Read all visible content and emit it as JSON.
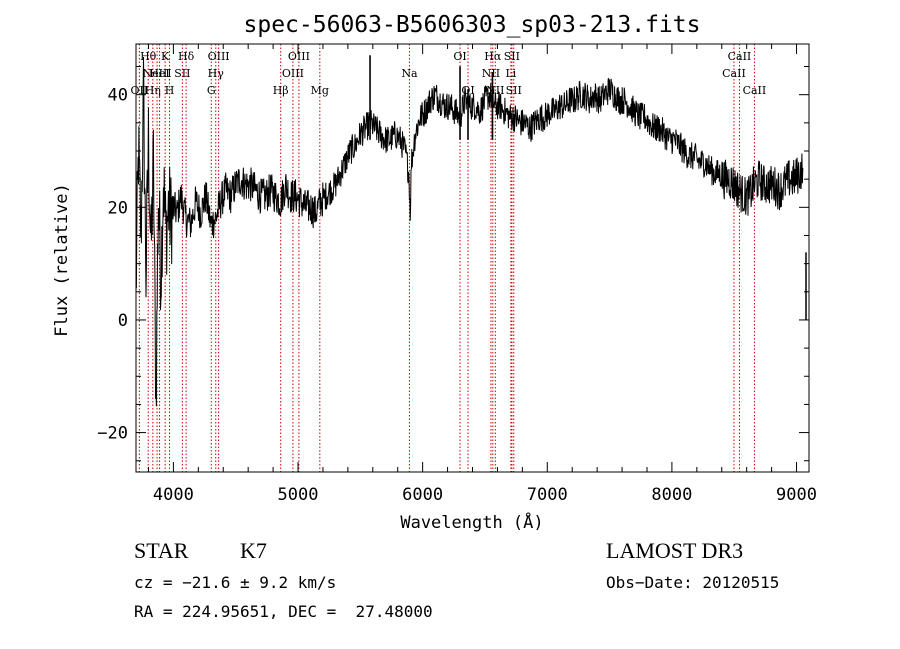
{
  "chart_data": {
    "type": "line",
    "title": "spec-56063-B5606303_sp03-213.fits",
    "xlabel": "Wavelength (Å)",
    "ylabel": "Flux (relative)",
    "xlim": [
      3700,
      9100
    ],
    "ylim": [
      -27,
      49
    ],
    "xticks": [
      4000,
      5000,
      6000,
      7000,
      8000,
      9000
    ],
    "yticks": [
      -20,
      0,
      20,
      40
    ],
    "series": [
      {
        "name": "flux",
        "x": [
          3700,
          3720,
          3740,
          3760,
          3780,
          3800,
          3820,
          3840,
          3860,
          3880,
          3900,
          3920,
          3940,
          3960,
          3980,
          4000,
          4030,
          4060,
          4100,
          4140,
          4180,
          4220,
          4260,
          4300,
          4340,
          4380,
          4420,
          4460,
          4500,
          4540,
          4580,
          4620,
          4660,
          4700,
          4740,
          4780,
          4820,
          4860,
          4900,
          4940,
          4980,
          5020,
          5060,
          5100,
          5140,
          5180,
          5220,
          5260,
          5300,
          5340,
          5380,
          5420,
          5460,
          5500,
          5540,
          5580,
          5620,
          5660,
          5700,
          5740,
          5780,
          5820,
          5860,
          5890,
          5900,
          5910,
          5940,
          5980,
          6020,
          6060,
          6100,
          6140,
          6180,
          6220,
          6260,
          6300,
          6340,
          6380,
          6420,
          6460,
          6500,
          6540,
          6580,
          6620,
          6660,
          6700,
          6740,
          6780,
          6820,
          6860,
          6900,
          6940,
          6980,
          7020,
          7060,
          7100,
          7140,
          7180,
          7220,
          7260,
          7300,
          7340,
          7380,
          7420,
          7460,
          7500,
          7540,
          7580,
          7620,
          7660,
          7700,
          7740,
          7780,
          7820,
          7860,
          7900,
          7940,
          7980,
          8020,
          8060,
          8100,
          8140,
          8180,
          8220,
          8260,
          8300,
          8340,
          8380,
          8420,
          8460,
          8500,
          8540,
          8580,
          8620,
          8660,
          8700,
          8740,
          8780,
          8820,
          8860,
          8900,
          8940,
          8980,
          9020,
          9050
        ],
        "values": [
          5,
          30,
          15,
          40,
          8,
          32,
          12,
          28,
          -14,
          22,
          8,
          25,
          15,
          20,
          18,
          20,
          19,
          22,
          18,
          17,
          21,
          19,
          22,
          17,
          18,
          21,
          23,
          22,
          24,
          25,
          24,
          24,
          23,
          22,
          22,
          23,
          22,
          21,
          24,
          22,
          22,
          21,
          20,
          20,
          19,
          21,
          22,
          23,
          24,
          26,
          28,
          30,
          31,
          33,
          34,
          35,
          34,
          33,
          32,
          32,
          33,
          32,
          30,
          26,
          19,
          28,
          33,
          36,
          37,
          39,
          40,
          39,
          38,
          38,
          37,
          36,
          39,
          38,
          38,
          37,
          39,
          40,
          38,
          38,
          37,
          36,
          36,
          35,
          35,
          34,
          35,
          36,
          36,
          37,
          37,
          38,
          38,
          39,
          39,
          40,
          40,
          39,
          40,
          39,
          40,
          41,
          40,
          39,
          39,
          38,
          37,
          36,
          36,
          35,
          34,
          34,
          33,
          32,
          32,
          31,
          30,
          29,
          29,
          28,
          28,
          27,
          26,
          26,
          25,
          25,
          24,
          23,
          22,
          22,
          24,
          25,
          24,
          24,
          24,
          23,
          24,
          25,
          25,
          26,
          27
        ]
      }
    ],
    "spikes": [
      {
        "x": 5578,
        "value": 47
      },
      {
        "x": 6300,
        "value": 45
      },
      {
        "x": 6364,
        "value": 41
      },
      {
        "x": 6560,
        "value": 44
      }
    ],
    "emission_lines": [
      {
        "x": 3727,
        "label": "OII",
        "row": 3
      },
      {
        "x": 3798,
        "label": "Hθ",
        "row": 1
      },
      {
        "x": 3835,
        "label": "Hη",
        "row": 3
      },
      {
        "x": 3869,
        "label": "NeIII",
        "row": 2
      },
      {
        "x": 3889,
        "label": "HeI",
        "row": 2
      },
      {
        "x": 3934,
        "label": "K",
        "row": 1
      },
      {
        "x": 3969,
        "label": "H",
        "row": 3
      },
      {
        "x": 4072,
        "label": "SII",
        "row": 2
      },
      {
        "x": 4102,
        "label": "Hδ",
        "row": 1
      },
      {
        "x": 4304,
        "label": "G",
        "row": 3
      },
      {
        "x": 4340,
        "label": "Hγ",
        "row": 2
      },
      {
        "x": 4363,
        "label": "OIII",
        "row": 1
      },
      {
        "x": 4861,
        "label": "Hβ",
        "row": 3
      },
      {
        "x": 4959,
        "label": "OIII",
        "row": 2
      },
      {
        "x": 5007,
        "label": "OIII",
        "row": 1
      },
      {
        "x": 5175,
        "label": "Mg",
        "row": 3
      },
      {
        "x": 5894,
        "label": "Na",
        "row": 2
      },
      {
        "x": 6300,
        "label": "OI",
        "row": 1
      },
      {
        "x": 6364,
        "label": "OI",
        "row": 3
      },
      {
        "x": 6548,
        "label": "NII",
        "row": 2
      },
      {
        "x": 6563,
        "label": "Hα",
        "row": 1
      },
      {
        "x": 6583,
        "label": "NII",
        "row": 3
      },
      {
        "x": 6708,
        "label": "Li",
        "row": 2
      },
      {
        "x": 6716,
        "label": "SII",
        "row": 1
      },
      {
        "x": 6731,
        "label": "SII",
        "row": 3
      },
      {
        "x": 8498,
        "label": "CaII",
        "row": 2
      },
      {
        "x": 8542,
        "label": "CaII",
        "row": 1
      },
      {
        "x": 8662,
        "label": "CaII",
        "row": 3
      }
    ]
  },
  "info": {
    "class": "STAR",
    "subclass": "K7",
    "survey": "LAMOST DR3",
    "cz": "cz = −21.6 ± 9.2 km/s",
    "obs_date": "Obs−Date: 20120515",
    "coords": "RA = 224.95651, DEC =  27.48000"
  },
  "colors": {
    "axis": "#000000",
    "spectrum": "#000000",
    "line_marker": "#cc0000"
  }
}
